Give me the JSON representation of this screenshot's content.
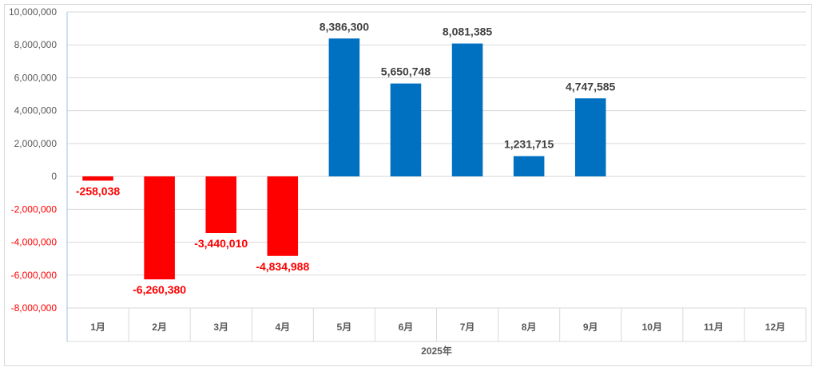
{
  "chart_data": {
    "type": "bar",
    "title": "",
    "xlabel": "2025年",
    "ylabel": "",
    "categories": [
      "1月",
      "2月",
      "3月",
      "4月",
      "5月",
      "6月",
      "7月",
      "8月",
      "9月",
      "10月",
      "11月",
      "12月"
    ],
    "values": [
      -258038,
      -6260380,
      -3440010,
      -4834988,
      8386300,
      5650748,
      8081385,
      1231715,
      4747585,
      null,
      null,
      null
    ],
    "data_labels": [
      "-258,038",
      "-6,260,380",
      "-3,440,010",
      "-4,834,988",
      "8,386,300",
      "5,650,748",
      "8,081,385",
      "1,231,715",
      "4,747,585",
      "",
      "",
      ""
    ],
    "ylim": [
      -8000000,
      10000000
    ],
    "yticks": [
      10000000,
      8000000,
      6000000,
      4000000,
      2000000,
      0,
      -2000000,
      -4000000,
      -6000000,
      -8000000
    ],
    "ytick_labels": [
      "10,000,000",
      "8,000,000",
      "6,000,000",
      "4,000,000",
      "2,000,000",
      "0",
      "-2,000,000",
      "-4,000,000",
      "-6,000,000",
      "-8,000,000"
    ],
    "colors": {
      "positive": "#0070C0",
      "negative": "#FF0000",
      "grid": "#D9D9D9",
      "axis": "#9DC3E6"
    },
    "grid": true,
    "legend": "none"
  }
}
